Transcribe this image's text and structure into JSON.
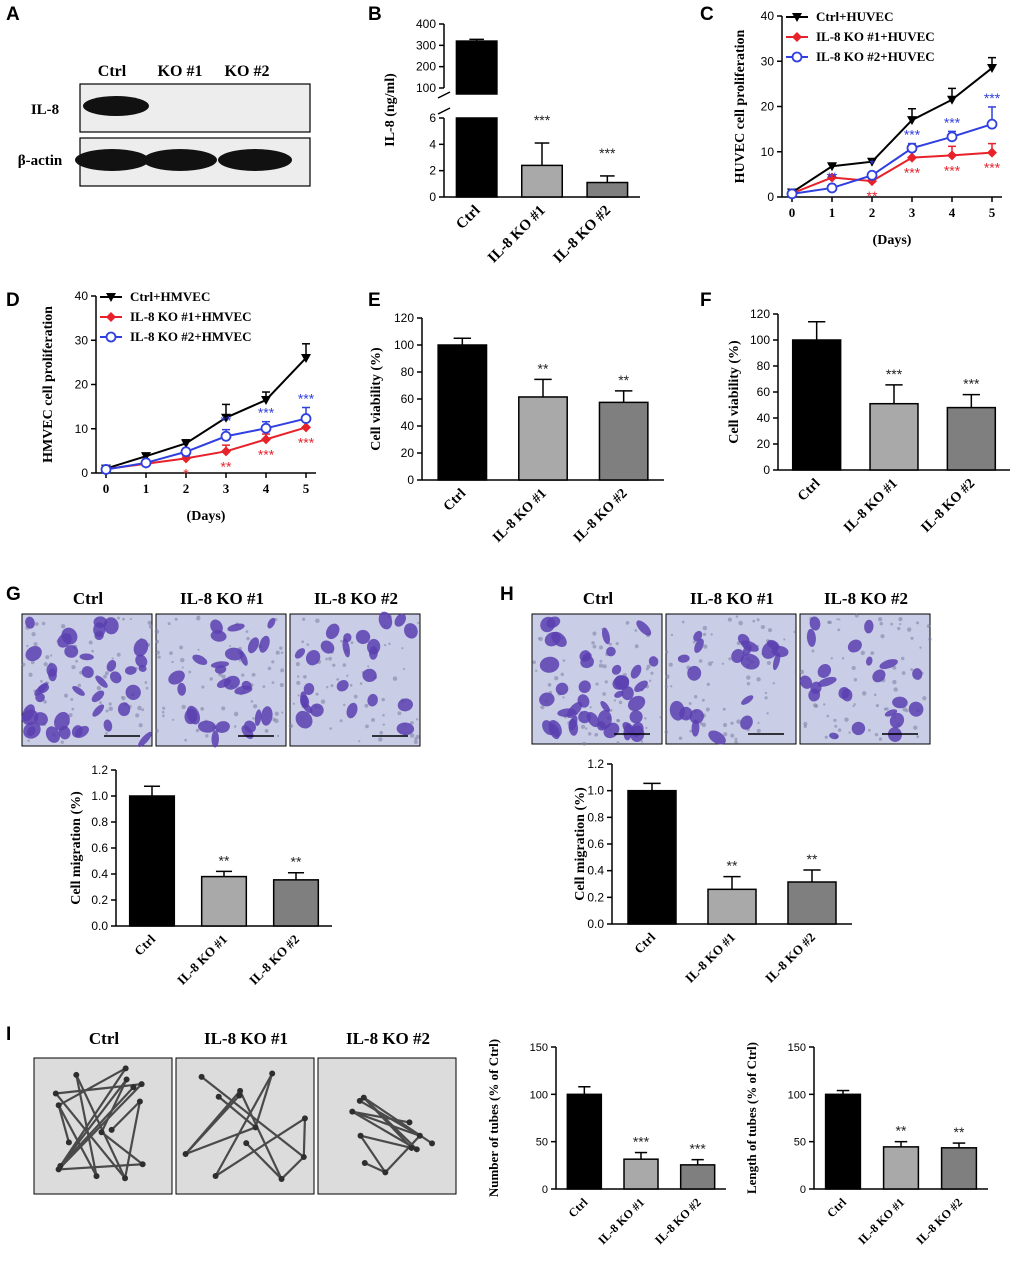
{
  "panel_letters": [
    "A",
    "B",
    "C",
    "D",
    "E",
    "F",
    "G",
    "H",
    "I"
  ],
  "colors": {
    "black": "#000000",
    "red": "#e8222a",
    "blue": "#2f3fe0",
    "bar_ctrl": "#000000",
    "bar_ko1": "#a9a9a9",
    "bar_ko2": "#7f7f7f",
    "stain": "#5a3fb0",
    "blot_bg": "#ededed"
  },
  "panel_A": {
    "lanes": [
      "Ctrl",
      "KO #1",
      "KO #2"
    ],
    "rows": [
      "IL-8",
      "β-actin"
    ]
  },
  "chart_data": [
    {
      "id": "B",
      "type": "bar",
      "ylabel": "IL-8 (ng/ml)",
      "categories": [
        "Ctrl",
        "IL-8 KO #1",
        "IL-8 KO #2"
      ],
      "values": [
        320,
        2.4,
        1.1
      ],
      "errors": [
        8,
        1.7,
        0.5
      ],
      "annotations": [
        "",
        "***",
        "***"
      ],
      "axis_break": {
        "lower": [
          0,
          6
        ],
        "upper": [
          100,
          400
        ]
      },
      "yticks_lower": [
        0,
        2,
        4,
        6
      ],
      "yticks_upper": [
        100,
        200,
        300,
        400
      ]
    },
    {
      "id": "C",
      "type": "line",
      "ylabel": "HUVEC cell proliferation",
      "xlabel": "(Days)",
      "x": [
        0,
        1,
        2,
        3,
        4,
        5
      ],
      "ylim": [
        0,
        40
      ],
      "yticks": [
        0,
        10,
        20,
        30,
        40
      ],
      "series": [
        {
          "name": "Ctrl+HUVEC",
          "color": "#000000",
          "marker": "triangle-down",
          "values": [
            1,
            6.8,
            7.8,
            17,
            21.5,
            28.5
          ],
          "errors": [
            0.3,
            0.5,
            0.6,
            2.5,
            2.5,
            2.3
          ],
          "annotations": [
            "",
            "",
            "",
            "",
            "",
            ""
          ]
        },
        {
          "name": "IL-8 KO #1+HUVEC",
          "color": "#e8222a",
          "marker": "diamond",
          "values": [
            0.8,
            4.3,
            3.5,
            8.7,
            9.2,
            9.8
          ],
          "errors": [
            0.2,
            0.6,
            0.5,
            1.8,
            2.0,
            2.0
          ],
          "annotations": [
            "",
            "",
            "**",
            "***",
            "***",
            "***"
          ]
        },
        {
          "name": "IL-8 KO #2+HUVEC",
          "color": "#2f3fe0",
          "marker": "circle-open",
          "values": [
            0.7,
            2.0,
            4.8,
            10.8,
            13.3,
            16.1
          ],
          "errors": [
            0.2,
            0.4,
            0.5,
            1.0,
            1.2,
            3.8
          ],
          "annotations": [
            "",
            "**",
            "*",
            "***",
            "***",
            "***"
          ]
        }
      ]
    },
    {
      "id": "D",
      "type": "line",
      "ylabel": "HMVEC cell proliferation",
      "xlabel": "(Days)",
      "x": [
        0,
        1,
        2,
        3,
        4,
        5
      ],
      "ylim": [
        0,
        40
      ],
      "yticks": [
        0,
        10,
        20,
        30,
        40
      ],
      "series": [
        {
          "name": "Ctrl+HMVEC",
          "color": "#000000",
          "marker": "triangle-down",
          "values": [
            1,
            3.8,
            6.7,
            12.5,
            16.5,
            26
          ],
          "errors": [
            0.3,
            0.5,
            0.8,
            3.0,
            1.8,
            3.2
          ],
          "annotations": [
            "",
            "",
            "",
            "",
            "",
            ""
          ]
        },
        {
          "name": "IL-8 KO #1+HMVEC",
          "color": "#e8222a",
          "marker": "diamond",
          "values": [
            0.9,
            2.1,
            3.3,
            4.9,
            7.6,
            10.3
          ],
          "errors": [
            0.2,
            0.3,
            0.6,
            1.4,
            1.2,
            1.5
          ],
          "annotations": [
            "",
            "",
            "*",
            "**",
            "***",
            "***"
          ]
        },
        {
          "name": "IL-8 KO #2+HMVEC",
          "color": "#2f3fe0",
          "marker": "circle-open",
          "values": [
            0.8,
            2.3,
            4.8,
            8.3,
            10.1,
            12.3
          ],
          "errors": [
            0.2,
            0.3,
            0.6,
            1.5,
            1.5,
            2.5
          ],
          "annotations": [
            "",
            "",
            "",
            "**",
            "***",
            "***"
          ]
        }
      ]
    },
    {
      "id": "E",
      "type": "bar",
      "ylabel": "Cell viability (%)",
      "categories": [
        "Ctrl",
        "IL-8 KO #1",
        "IL-8 KO #2"
      ],
      "values": [
        100,
        61.5,
        57.5
      ],
      "errors": [
        5,
        13,
        8.5
      ],
      "annotations": [
        "",
        "**",
        "**"
      ],
      "ylim": [
        0,
        120
      ],
      "yticks": [
        0,
        20,
        40,
        60,
        80,
        100,
        120
      ]
    },
    {
      "id": "F",
      "type": "bar",
      "ylabel": "Cell viability (%)",
      "categories": [
        "Ctrl",
        "IL-8 KO #1",
        "IL-8 KO #2"
      ],
      "values": [
        100,
        51,
        48
      ],
      "errors": [
        14,
        14.5,
        10
      ],
      "annotations": [
        "",
        "***",
        "***"
      ],
      "ylim": [
        0,
        120
      ],
      "yticks": [
        0,
        20,
        40,
        60,
        80,
        100,
        120
      ]
    },
    {
      "id": "G",
      "type": "bar",
      "ylabel": "Cell migration (%)",
      "categories": [
        "Ctrl",
        "IL-8 KO #1",
        "IL-8 KO #2"
      ],
      "values": [
        1.0,
        0.38,
        0.355
      ],
      "errors": [
        0.075,
        0.04,
        0.055
      ],
      "annotations": [
        "",
        "**",
        "**"
      ],
      "ylim": [
        0,
        1.2
      ],
      "yticks": [
        0.0,
        0.2,
        0.4,
        0.6,
        0.8,
        1.0,
        1.2
      ]
    },
    {
      "id": "H",
      "type": "bar",
      "ylabel": "Cell migration (%)",
      "categories": [
        "Ctrl",
        "IL-8 KO #1",
        "IL-8 KO #2"
      ],
      "values": [
        1.0,
        0.26,
        0.315
      ],
      "errors": [
        0.055,
        0.095,
        0.09
      ],
      "annotations": [
        "",
        "**",
        "**"
      ],
      "ylim": [
        0,
        1.2
      ],
      "yticks": [
        0.0,
        0.2,
        0.4,
        0.6,
        0.8,
        1.0,
        1.2
      ]
    },
    {
      "id": "I1",
      "type": "bar",
      "ylabel": "Number of tubes (% of Ctrl)",
      "categories": [
        "Ctrl",
        "IL-8 KO #1",
        "IL-8 KO #2"
      ],
      "values": [
        100,
        31.5,
        25.5
      ],
      "errors": [
        8,
        7,
        5.5
      ],
      "annotations": [
        "",
        "***",
        "***"
      ],
      "ylim": [
        0,
        150
      ],
      "yticks": [
        0,
        50,
        100,
        150
      ]
    },
    {
      "id": "I2",
      "type": "bar",
      "ylabel": "Length of tubes (% of Ctrl)",
      "categories": [
        "Ctrl",
        "IL-8 KO #1",
        "IL-8 KO #2"
      ],
      "values": [
        100,
        44.5,
        43.5
      ],
      "errors": [
        4,
        5.5,
        5
      ],
      "annotations": [
        "",
        "**",
        "**"
      ],
      "ylim": [
        0,
        150
      ],
      "yticks": [
        0,
        50,
        100,
        150
      ]
    }
  ],
  "micrographs": {
    "G": [
      "Ctrl",
      "IL-8 KO #1",
      "IL-8 KO #2"
    ],
    "H": [
      "Ctrl",
      "IL-8 KO #1",
      "IL-8 KO #2"
    ],
    "I": [
      "Ctrl",
      "IL-8 KO #1",
      "IL-8 KO #2"
    ]
  }
}
